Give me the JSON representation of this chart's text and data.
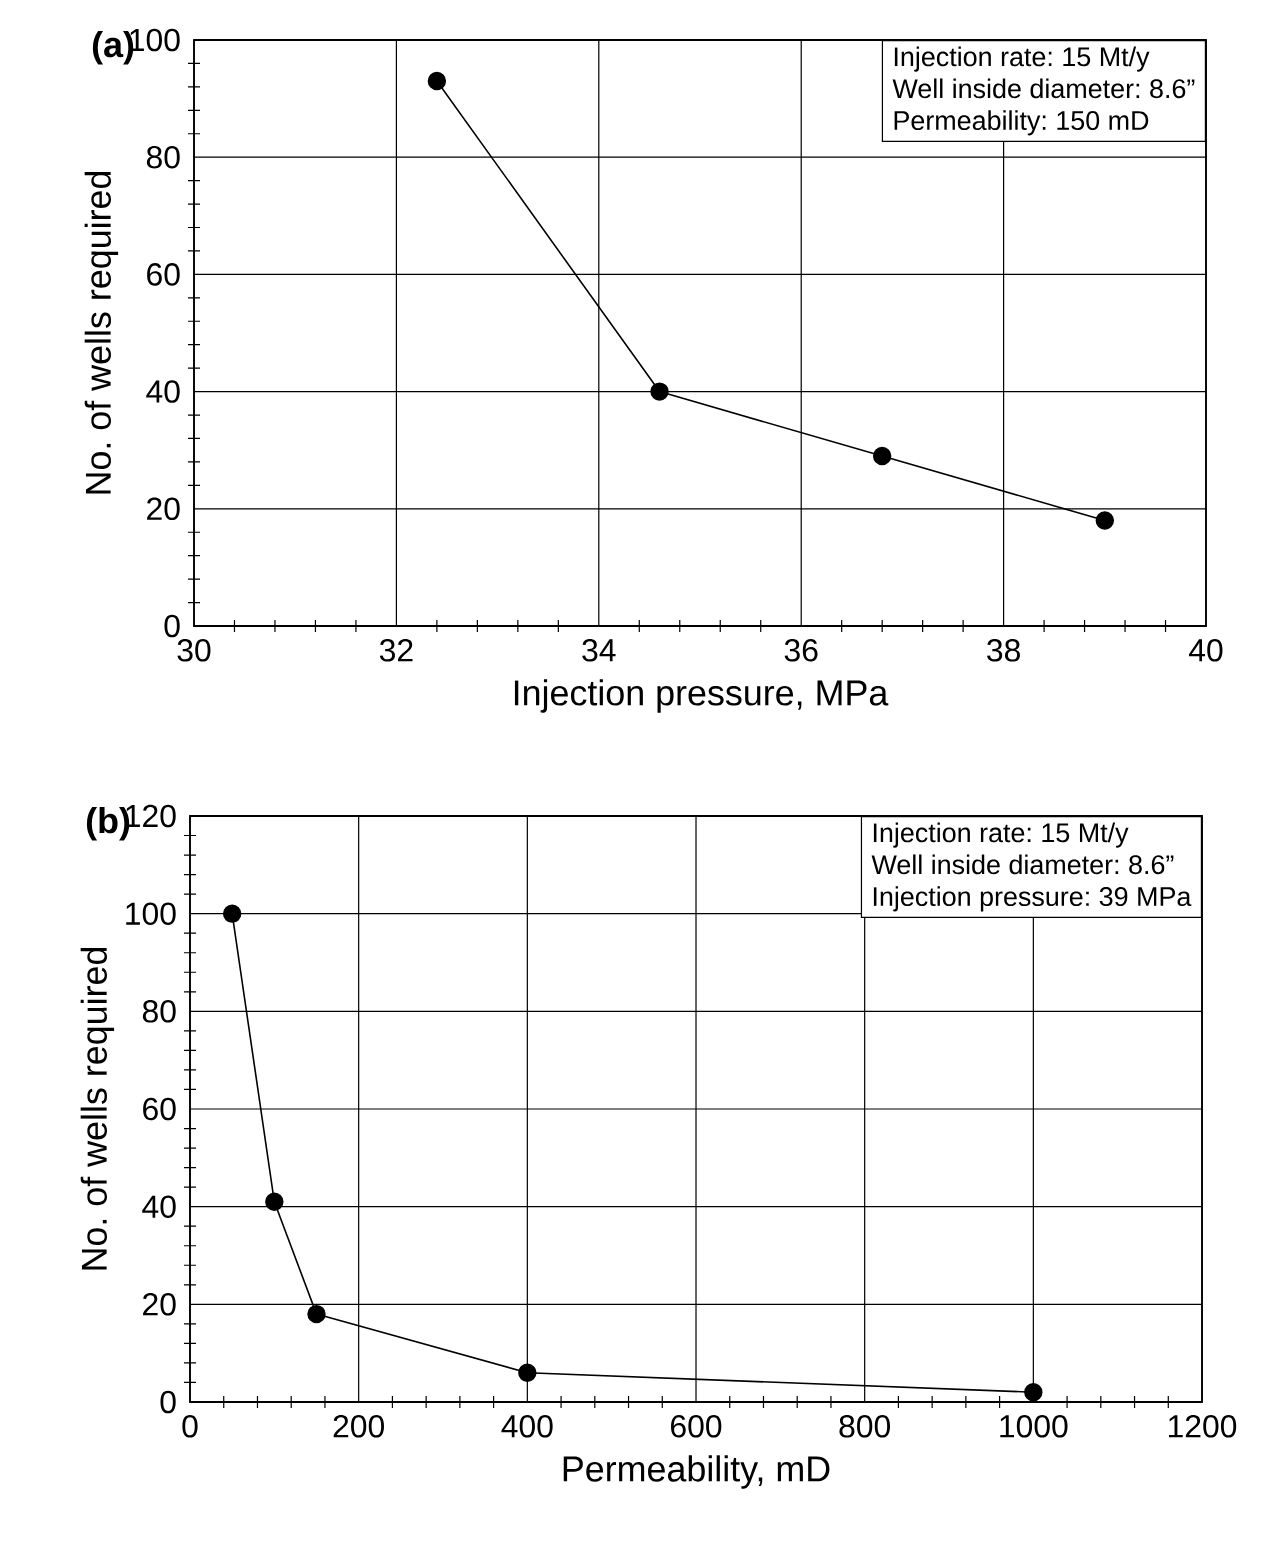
{
  "chart_data": [
    {
      "type": "line",
      "title": "(a)",
      "xlabel": "Injection pressure,  MPa",
      "ylabel": "No. of wells required",
      "x": [
        32.4,
        34.6,
        36.8,
        39
      ],
      "values": [
        93,
        40,
        29,
        18
      ],
      "color": "#000000",
      "marker": "circle",
      "line_style": "solid",
      "xlim": [
        30,
        40
      ],
      "xticks": [
        30,
        32,
        34,
        36,
        38,
        40
      ],
      "ylim": [
        0,
        100
      ],
      "yticks": [
        0,
        20,
        40,
        60,
        80,
        100
      ],
      "grid": true,
      "annotations": [
        "Injection rate: 15 Mt/y",
        "Well inside diameter: 8.6”",
        "Permeability: 150 mD"
      ]
    },
    {
      "type": "line",
      "title": "(b)",
      "xlabel": "Permeability, mD",
      "ylabel": "No. of wells required",
      "x": [
        50,
        100,
        150,
        400,
        1000
      ],
      "values": [
        100,
        41,
        18,
        6,
        2
      ],
      "color": "#000000",
      "marker": "circle",
      "line_style": "solid",
      "xlim": [
        0,
        1200
      ],
      "xticks": [
        0,
        200,
        400,
        600,
        800,
        1000,
        1200
      ],
      "ylim": [
        0,
        120
      ],
      "yticks": [
        0,
        20,
        40,
        60,
        80,
        100,
        120
      ],
      "grid": true,
      "annotations": [
        "Injection rate: 15 Mt/y",
        "Well inside diameter: 8.6”",
        "Injection pressure: 39 MPa"
      ]
    }
  ]
}
